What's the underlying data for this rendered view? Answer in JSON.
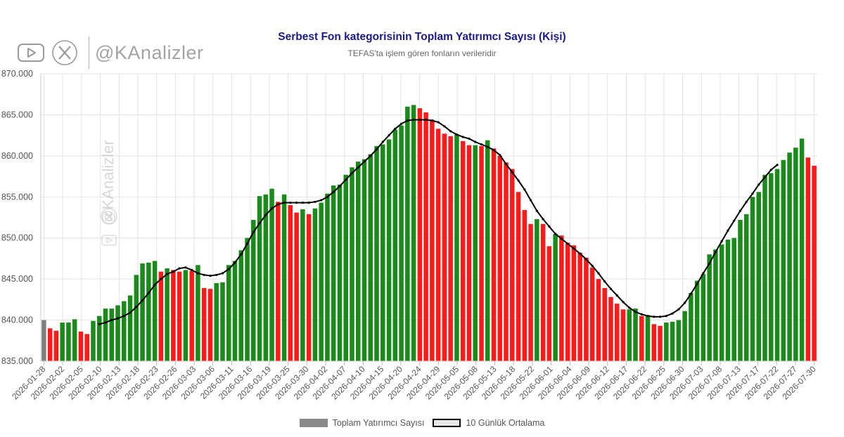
{
  "header": {
    "brand_handle": "@KAnalizler",
    "youtube_icon": "youtube-icon",
    "x_icon": "x-icon",
    "title": "Serbest Fon kategorisinin Toplam Yatırımcı Sayısı (Kişi)",
    "subtitle": "TEFAS'ta işlem gören fonların verileridir"
  },
  "watermark": {
    "text": "@KAnalizler"
  },
  "colors": {
    "up": "#1a8a1a",
    "down": "#ff1a1a",
    "first": "#7f7f7f",
    "ma_line": "#000000",
    "grid": "#e3e3e3",
    "title": "#1a1a8c"
  },
  "legend": {
    "items": [
      {
        "label": "Toplam Yatırımcı Sayısı",
        "swatch": "#8a8a8a",
        "border": "#8a8a8a"
      },
      {
        "label": "10 Günlük Ortalama",
        "swatch": "#e8e8e8",
        "border": "#000000"
      }
    ]
  },
  "chart_data": {
    "type": "bar",
    "title": "Serbest Fon kategorisinin Toplam Yatırımcı Sayısı (Kişi)",
    "subtitle": "TEFAS'ta işlem gören fonların verileridir",
    "xlabel": "",
    "ylabel": "",
    "ylim": [
      835000,
      870000
    ],
    "y_ticks": [
      835000,
      840000,
      845000,
      850000,
      855000,
      860000,
      865000,
      870000
    ],
    "y_tick_labels": [
      "835.000",
      "840.000",
      "845.000",
      "850.000",
      "855.000",
      "860.000",
      "865.000",
      "870.000"
    ],
    "x_tick_labels": [
      "2026-01-28",
      "2026-02-02",
      "2026-02-05",
      "2026-02-10",
      "2026-02-13",
      "2026-02-18",
      "2026-02-23",
      "2026-02-26",
      "2026-03-03",
      "2026-03-06",
      "2026-03-11",
      "2026-03-16",
      "2026-03-19",
      "2026-03-25",
      "2026-03-30",
      "2026-04-02",
      "2026-04-07",
      "2026-04-10",
      "2026-04-15",
      "2026-04-20",
      "2026-04-24",
      "2026-04-29",
      "2026-05-05",
      "2026-05-08",
      "2026-05-13",
      "2026-05-18",
      "2026-05-22",
      "2026-06-01",
      "2026-06-04",
      "2026-06-09",
      "2026-06-12",
      "2026-06-17",
      "2026-06-22",
      "2026-06-25",
      "2026-06-30",
      "2026-07-03",
      "2026-07-08",
      "2026-07-13",
      "2026-07-17",
      "2026-07-22",
      "2026-07-27",
      "2026-07-30"
    ],
    "series": [
      {
        "name": "Toplam Yatırımcı Sayısı",
        "values": [
          840000,
          839000,
          838700,
          839700,
          839700,
          840100,
          838600,
          838300,
          839900,
          840500,
          841400,
          841400,
          841800,
          842300,
          843000,
          845500,
          846900,
          847000,
          847200,
          845900,
          846300,
          846100,
          845900,
          846100,
          846000,
          846700,
          843900,
          843800,
          844500,
          844600,
          846700,
          847200,
          848500,
          850000,
          852200,
          855100,
          855300,
          856000,
          854400,
          855300,
          854000,
          853100,
          853500,
          852900,
          853600,
          854300,
          855400,
          856400,
          856500,
          857700,
          858600,
          859300,
          859600,
          860200,
          861200,
          861400,
          862000,
          863200,
          863700,
          866000,
          866200,
          865800,
          865300,
          864400,
          863300,
          862700,
          862400,
          862600,
          861800,
          861300,
          861300,
          861200,
          861900,
          860900,
          860000,
          859200,
          858400,
          855600,
          853400,
          851700,
          852300,
          851700,
          849000,
          850500,
          850300,
          849400,
          849100,
          848200,
          847600,
          846400,
          845000,
          843900,
          842800,
          842000,
          841300,
          841300,
          841400,
          840500,
          840600,
          839500,
          839300,
          839700,
          839800,
          840000,
          841100,
          843300,
          844800,
          845600,
          848000,
          848600,
          849200,
          849800,
          850000,
          852200,
          852900,
          855000,
          855600,
          857700,
          857900,
          858400,
          859500,
          860400,
          861000,
          862100,
          859800,
          858800
        ]
      },
      {
        "name": "10 Günlük Ortalama",
        "start_index": 9,
        "values": [
          839500,
          839700,
          840000,
          840200,
          840500,
          840900,
          841600,
          842400,
          843300,
          844300,
          845000,
          845600,
          845900,
          846300,
          846400,
          846100,
          845700,
          845500,
          845400,
          845500,
          845700,
          846200,
          847000,
          848000,
          849300,
          850700,
          851800,
          852800,
          853600,
          854100,
          854300,
          854300,
          854300,
          854300,
          854300,
          854400,
          854600,
          855000,
          855600,
          856300,
          857100,
          857900,
          858600,
          859300,
          860000,
          860800,
          861700,
          862500,
          863300,
          863900,
          864300,
          864400,
          864400,
          864400,
          864300,
          864100,
          863600,
          863000,
          862600,
          862300,
          862100,
          861700,
          861400,
          861100,
          860700,
          860100,
          859000,
          858000,
          857000,
          855900,
          854600,
          853300,
          852300,
          851400,
          850500,
          849900,
          849300,
          848700,
          848100,
          847400,
          846600,
          845700,
          844700,
          843800,
          843000,
          842200,
          841500,
          841000,
          840700,
          840500,
          840400,
          840400,
          840500,
          840800,
          841300,
          842100,
          843200,
          844400,
          845700,
          846900,
          848300,
          849600,
          850900,
          852100,
          853300,
          854400,
          855400,
          856500,
          857400,
          858300,
          858900
        ]
      }
    ]
  }
}
